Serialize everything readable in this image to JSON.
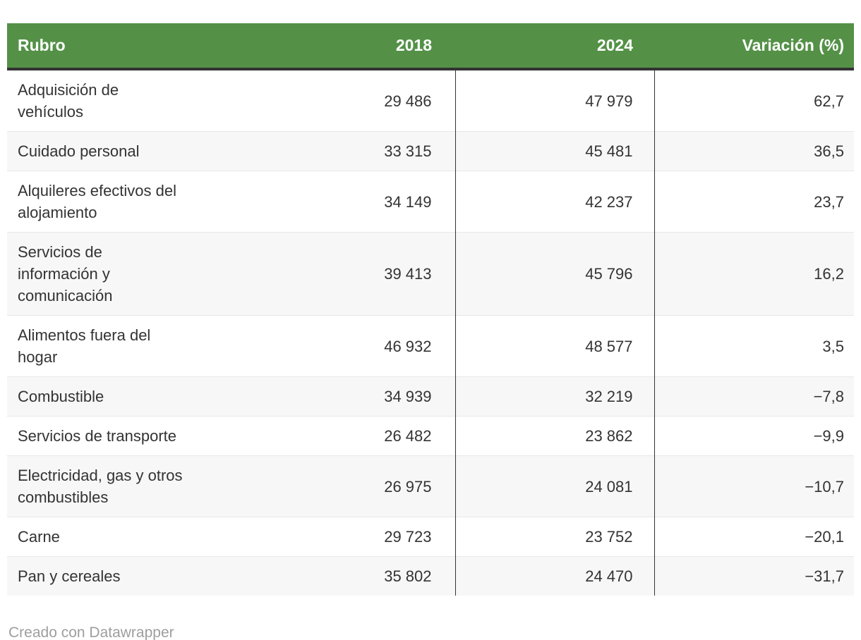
{
  "colors": {
    "header_background": "#549147",
    "header_text": "#ffffff",
    "header_underline": "#333333",
    "body_text": "#333333",
    "stripe_row": "#f7f7f7",
    "row_separator": "#e8e8e8",
    "column_divider": "#333333",
    "attribution_text": "#9e9e9e"
  },
  "table": {
    "columns": [
      {
        "label": "Rubro"
      },
      {
        "label": "2018"
      },
      {
        "label": "2024"
      },
      {
        "label": "Variación (%)"
      }
    ],
    "rows": [
      {
        "rubro": "Adquisición de\nvehículos",
        "y2018": "29 486",
        "y2024": "47 979",
        "variacion": "62,7"
      },
      {
        "rubro": "Cuidado personal",
        "y2018": "33 315",
        "y2024": "45 481",
        "variacion": "36,5"
      },
      {
        "rubro": "Alquileres efectivos del\nalojamiento",
        "y2018": "34 149",
        "y2024": "42 237",
        "variacion": "23,7"
      },
      {
        "rubro": "Servicios de\ninformación y\ncomunicación",
        "y2018": "39 413",
        "y2024": "45 796",
        "variacion": "16,2"
      },
      {
        "rubro": "Alimentos fuera del\nhogar",
        "y2018": "46 932",
        "y2024": "48 577",
        "variacion": "3,5"
      },
      {
        "rubro": "Combustible",
        "y2018": "34 939",
        "y2024": "32 219",
        "variacion": "−7,8"
      },
      {
        "rubro": "Servicios de transporte",
        "y2018": "26 482",
        "y2024": "23 862",
        "variacion": "−9,9"
      },
      {
        "rubro": "Electricidad, gas y otros\ncombustibles",
        "y2018": "26 975",
        "y2024": "24 081",
        "variacion": "−10,7"
      },
      {
        "rubro": "Carne",
        "y2018": "29 723",
        "y2024": "23 752",
        "variacion": "−20,1"
      },
      {
        "rubro": "Pan y cereales",
        "y2018": "35 802",
        "y2024": "24 470",
        "variacion": "−31,7"
      }
    ]
  },
  "footer": {
    "attribution": "Creado con Datawrapper"
  },
  "chart_data": {
    "type": "table",
    "title": "",
    "columns": [
      "Rubro",
      "2018",
      "2024",
      "Variación (%)"
    ],
    "rows": [
      [
        "Adquisición de vehículos",
        29486,
        47979,
        62.7
      ],
      [
        "Cuidado personal",
        33315,
        45481,
        36.5
      ],
      [
        "Alquileres efectivos del alojamiento",
        34149,
        42237,
        23.7
      ],
      [
        "Servicios de información y comunicación",
        39413,
        45796,
        16.2
      ],
      [
        "Alimentos fuera del hogar",
        46932,
        48577,
        3.5
      ],
      [
        "Combustible",
        34939,
        32219,
        -7.8
      ],
      [
        "Servicios de transporte",
        26482,
        23862,
        -9.9
      ],
      [
        "Electricidad, gas y otros combustibles",
        26975,
        24081,
        -10.7
      ],
      [
        "Carne",
        29723,
        23752,
        -20.1
      ],
      [
        "Pan y cereales",
        35802,
        24470,
        -31.7
      ]
    ],
    "number_format": "thousands separated by space, decimal comma, minus sign U+2212",
    "layout_hints": {
      "header_style": "green background, white bold text, dark bottom rule",
      "striping": "even rows light gray",
      "column_dividers": "dark vertical rules before 2024 and Variación columns (body only)",
      "alignment": [
        "left",
        "right",
        "right",
        "right"
      ]
    }
  }
}
